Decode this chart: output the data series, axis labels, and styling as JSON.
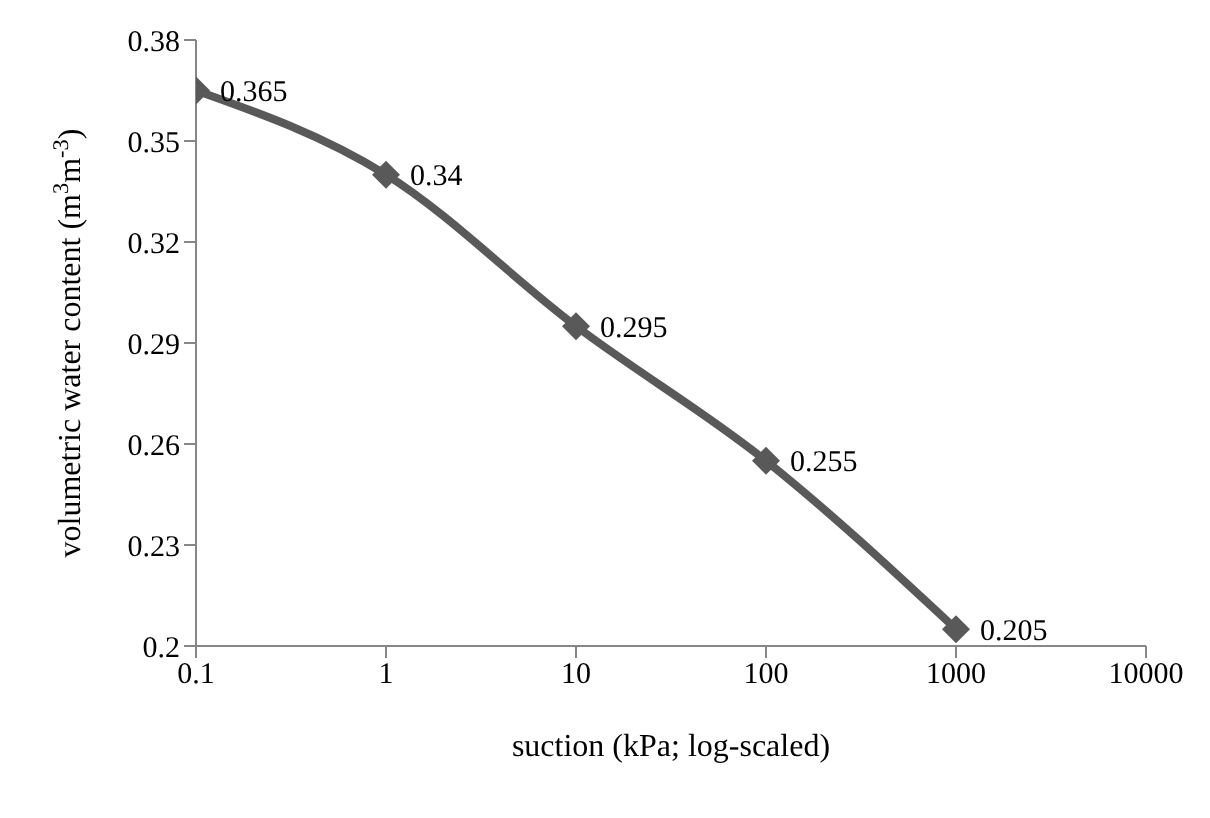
{
  "chart_data": {
    "type": "line",
    "xlabel": "suction (kPa; log-scaled)",
    "ylabel": "volumetric water content (m$^{3}$m$^{-3}$)",
    "x": [
      0.1,
      1,
      10,
      100,
      1000
    ],
    "series": [
      {
        "color": "#595959",
        "values": [
          0.365,
          0.34,
          0.295,
          0.255,
          0.205
        ]
      }
    ],
    "log": "x",
    "xlim": [
      0.1,
      10000
    ],
    "xticks": [
      0.1,
      1,
      10,
      100,
      1000,
      10000
    ],
    "ylim": [
      0.2,
      0.38
    ],
    "yticks": [
      0.2,
      0.23,
      0.26,
      0.29,
      0.32,
      0.35,
      0.38
    ],
    "grid": false,
    "legend": false,
    "marker": "diamond",
    "line_style": "solid",
    "data_labels": true
  }
}
